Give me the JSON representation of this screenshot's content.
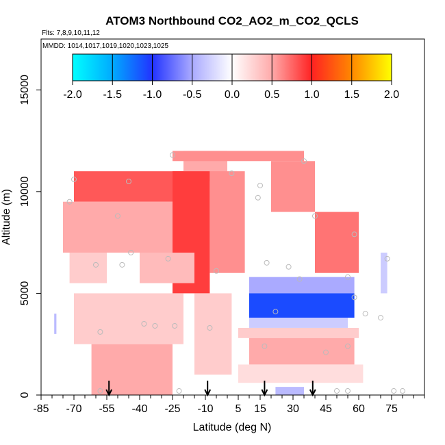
{
  "chart_data": {
    "type": "heatmap",
    "title": "ATOM3 Northbound CO2_AO2_m_CO2_QCLS",
    "flights_label": "Flts: 7,8,9,10,11,12",
    "dates_label": "MMDD: 1014,1017,1019,1020,1023,1025",
    "xlabel": "Latitude (deg N)",
    "ylabel": "Altitude (m)",
    "xlim": [
      -85,
      90
    ],
    "ylim": [
      0,
      17500
    ],
    "x_ticks": [
      -85,
      -70,
      -55,
      -40,
      -25,
      -10,
      5,
      15,
      30,
      45,
      60,
      75
    ],
    "x_minor_ticks": [
      -80,
      -75,
      -65,
      -60,
      -50,
      -45,
      -35,
      -30,
      -20,
      -15,
      -5,
      0,
      10,
      20,
      25,
      35,
      40,
      50,
      55,
      65,
      70,
      80,
      85,
      90
    ],
    "y_ticks": [
      0,
      5000,
      10000,
      15000
    ],
    "colorbar": {
      "min": -2.0,
      "max": 2.0,
      "tick_values": [
        -2.0,
        -1.5,
        -1.0,
        -0.5,
        0.0,
        0.5,
        1.0,
        1.5,
        2.0
      ],
      "tick_labels": [
        "-2.0",
        "-1.5",
        "-1.0",
        "-0.5",
        "0.0",
        "0.5",
        "1.0",
        "1.5",
        "2.0"
      ],
      "stops": [
        {
          "value": -2.0,
          "color": "#00ffff"
        },
        {
          "value": -1.5,
          "color": "#00aaff"
        },
        {
          "value": -1.0,
          "color": "#2233ff"
        },
        {
          "value": -0.5,
          "color": "#aaaaff"
        },
        {
          "value": 0.0,
          "color": "#ffffff"
        },
        {
          "value": 0.5,
          "color": "#ffaaaa"
        },
        {
          "value": 1.0,
          "color": "#ff2222"
        },
        {
          "value": 1.5,
          "color": "#ff8800"
        },
        {
          "value": 2.0,
          "color": "#ffff00"
        }
      ]
    },
    "profile_arrow_latitudes": [
      -54,
      -9,
      17,
      39
    ],
    "heatmap_cells": [
      {
        "lat": [
          -70,
          -20
        ],
        "alt": [
          9500,
          11000
        ],
        "value": 0.8
      },
      {
        "lat": [
          -20,
          0
        ],
        "alt": [
          10500,
          12000
        ],
        "value": 0.5
      },
      {
        "lat": [
          -25,
          35
        ],
        "alt": [
          11500,
          12000
        ],
        "value": 0.6
      },
      {
        "lat": [
          -75,
          -25
        ],
        "alt": [
          7000,
          9500
        ],
        "value": 0.5
      },
      {
        "lat": [
          -25,
          -8
        ],
        "alt": [
          5000,
          11000
        ],
        "value": 0.9
      },
      {
        "lat": [
          -8,
          8
        ],
        "alt": [
          6000,
          11000
        ],
        "value": 0.6
      },
      {
        "lat": [
          20,
          40
        ],
        "alt": [
          9000,
          11500
        ],
        "value": 0.6
      },
      {
        "lat": [
          40,
          60
        ],
        "alt": [
          6000,
          9000
        ],
        "value": 0.7
      },
      {
        "lat": [
          -72,
          -55
        ],
        "alt": [
          5500,
          7000
        ],
        "value": 0.3
      },
      {
        "lat": [
          -40,
          -15
        ],
        "alt": [
          5500,
          7000
        ],
        "value": 0.4
      },
      {
        "lat": [
          -70,
          -20
        ],
        "alt": [
          2500,
          5000
        ],
        "value": 0.3
      },
      {
        "lat": [
          -62,
          -25
        ],
        "alt": [
          0,
          2500
        ],
        "value": 0.5
      },
      {
        "lat": [
          -15,
          2
        ],
        "alt": [
          1000,
          5000
        ],
        "value": 0.3
      },
      {
        "lat": [
          10,
          58
        ],
        "alt": [
          5000,
          5800
        ],
        "value": -0.5
      },
      {
        "lat": [
          10,
          58
        ],
        "alt": [
          3800,
          5000
        ],
        "value": -1.1
      },
      {
        "lat": [
          10,
          55
        ],
        "alt": [
          3300,
          3800
        ],
        "value": -0.3
      },
      {
        "lat": [
          5,
          60
        ],
        "alt": [
          2800,
          3300
        ],
        "value": 0.3
      },
      {
        "lat": [
          10,
          58
        ],
        "alt": [
          1500,
          2800
        ],
        "value": 0.5
      },
      {
        "lat": [
          5,
          62
        ],
        "alt": [
          600,
          1500
        ],
        "value": 0.2
      },
      {
        "lat": [
          22,
          35
        ],
        "alt": [
          0,
          400
        ],
        "value": -0.4
      },
      {
        "lat": [
          -79,
          -78
        ],
        "alt": [
          3000,
          4000
        ],
        "value": -0.4
      },
      {
        "lat": [
          70,
          73
        ],
        "alt": [
          5000,
          7000
        ],
        "value": -0.3
      }
    ],
    "sample_points": [
      {
        "lat": -70,
        "alt": 10600
      },
      {
        "lat": -72,
        "alt": 9500
      },
      {
        "lat": -45,
        "alt": 10500
      },
      {
        "lat": -50,
        "alt": 8800
      },
      {
        "lat": -60,
        "alt": 6400
      },
      {
        "lat": -48,
        "alt": 6400
      },
      {
        "lat": -44,
        "alt": 7000
      },
      {
        "lat": -25,
        "alt": 11800
      },
      {
        "lat": 2,
        "alt": 10900
      },
      {
        "lat": 15,
        "alt": 10300
      },
      {
        "lat": 14,
        "alt": 9700
      },
      {
        "lat": 35,
        "alt": 11500
      },
      {
        "lat": 40,
        "alt": 8800
      },
      {
        "lat": 58,
        "alt": 7900
      },
      {
        "lat": -27,
        "alt": 6700
      },
      {
        "lat": -5,
        "alt": 6100
      },
      {
        "lat": 18,
        "alt": 6500
      },
      {
        "lat": 28,
        "alt": 6300
      },
      {
        "lat": 33,
        "alt": 5700
      },
      {
        "lat": 55,
        "alt": 5800
      },
      {
        "lat": 58,
        "alt": 4800
      },
      {
        "lat": 63,
        "alt": 4000
      },
      {
        "lat": 73,
        "alt": 6700
      },
      {
        "lat": 70,
        "alt": 3800
      },
      {
        "lat": 22,
        "alt": 4100
      },
      {
        "lat": -38,
        "alt": 3500
      },
      {
        "lat": -33,
        "alt": 3400
      },
      {
        "lat": -24,
        "alt": 3400
      },
      {
        "lat": -8,
        "alt": 3300
      },
      {
        "lat": -58,
        "alt": 3100
      },
      {
        "lat": 17,
        "alt": 2400
      },
      {
        "lat": 45,
        "alt": 2100
      },
      {
        "lat": 55,
        "alt": 2400
      },
      {
        "lat": -22,
        "alt": 200
      },
      {
        "lat": -58,
        "alt": 200
      },
      {
        "lat": 50,
        "alt": 200
      },
      {
        "lat": 55,
        "alt": 200
      },
      {
        "lat": 76,
        "alt": 200
      },
      {
        "lat": 80,
        "alt": 200
      }
    ]
  }
}
